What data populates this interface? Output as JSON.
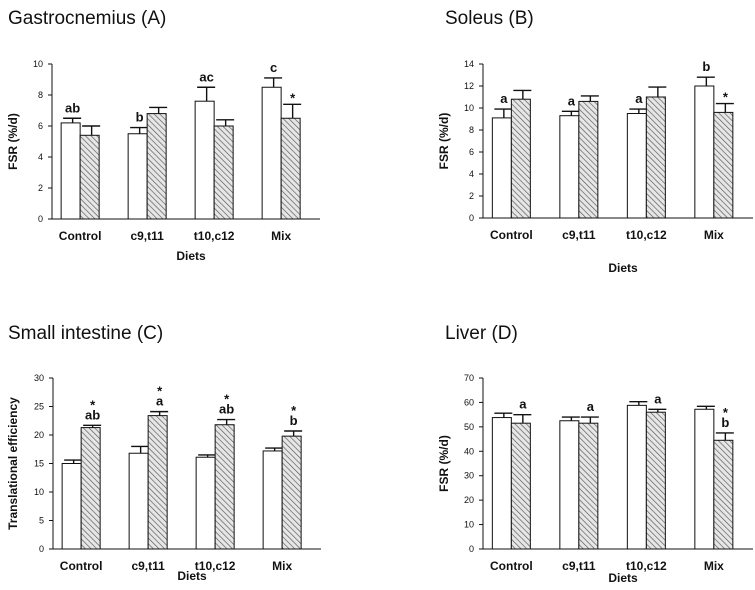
{
  "chart_data": [
    {
      "type": "bar",
      "title": "Gastrocnemius (A)",
      "xlabel": "Diets",
      "ylabel": "FSR (%/d)",
      "ylim": [
        0,
        10
      ],
      "yticks": [
        0,
        2,
        4,
        6,
        8,
        10
      ],
      "categories": [
        "Control",
        "c9,t11",
        "t10,c12",
        "Mix"
      ],
      "series": [
        {
          "values": [
            6.2,
            5.5,
            7.6,
            8.5
          ],
          "errors": [
            0.3,
            0.4,
            0.9,
            0.6
          ],
          "pattern": "open"
        },
        {
          "values": [
            5.4,
            6.8,
            6.0,
            6.5
          ],
          "errors": [
            0.6,
            0.4,
            0.4,
            0.9
          ],
          "pattern": "hatched"
        }
      ],
      "group_labels": [
        "ab",
        "b",
        "ac",
        "c"
      ],
      "annotations": [
        {
          "category": 0,
          "series": 0,
          "text": "ab"
        },
        {
          "category": 1,
          "series": 0,
          "text": "b"
        },
        {
          "category": 2,
          "series": 0,
          "text": "ac"
        },
        {
          "category": 3,
          "series": 0,
          "text": "c"
        },
        {
          "category": 3,
          "series": 1,
          "text": "*"
        }
      ]
    },
    {
      "type": "bar",
      "title": "Soleus (B)",
      "xlabel": "Diets",
      "ylabel": "FSR (%/d)",
      "ylim": [
        0,
        14
      ],
      "yticks": [
        0,
        2,
        4,
        6,
        8,
        10,
        12,
        14
      ],
      "categories": [
        "Control",
        "c9,t11",
        "t10,c12",
        "Mix"
      ],
      "series": [
        {
          "values": [
            9.1,
            9.3,
            9.5,
            12.0
          ],
          "errors": [
            0.8,
            0.4,
            0.4,
            0.8
          ],
          "pattern": "open"
        },
        {
          "values": [
            10.8,
            10.6,
            11.0,
            9.6
          ],
          "errors": [
            0.8,
            0.5,
            0.9,
            0.8
          ],
          "pattern": "hatched"
        }
      ],
      "group_labels": [
        "a",
        "a",
        "a",
        "b"
      ],
      "annotations": [
        {
          "category": 0,
          "series": 0,
          "text": "a"
        },
        {
          "category": 1,
          "series": 0,
          "text": "a"
        },
        {
          "category": 2,
          "series": 0,
          "text": "a"
        },
        {
          "category": 3,
          "series": 0,
          "text": "b"
        },
        {
          "category": 3,
          "series": 1,
          "text": "*"
        }
      ]
    },
    {
      "type": "bar",
      "title": "Small intestine (C)",
      "xlabel": "Diets",
      "ylabel": "Translational efficiency",
      "ylim": [
        0,
        30
      ],
      "yticks": [
        0,
        5,
        10,
        15,
        20,
        25,
        30
      ],
      "categories": [
        "Control",
        "c9,t11",
        "t10,c12",
        "Mix"
      ],
      "series": [
        {
          "values": [
            15.0,
            16.8,
            16.1,
            17.2
          ],
          "errors": [
            0.6,
            1.2,
            0.4,
            0.5
          ],
          "pattern": "open"
        },
        {
          "values": [
            21.3,
            23.4,
            21.8,
            19.8
          ],
          "errors": [
            0.4,
            0.7,
            0.9,
            0.9
          ],
          "pattern": "hatched"
        }
      ],
      "group_labels": [
        "ab",
        "a",
        "ab",
        "b"
      ],
      "annotations": [
        {
          "category": 0,
          "series": 1,
          "text": "*"
        },
        {
          "category": 0,
          "series": 1,
          "text": "ab"
        },
        {
          "category": 1,
          "series": 1,
          "text": "*"
        },
        {
          "category": 1,
          "series": 1,
          "text": "a"
        },
        {
          "category": 2,
          "series": 1,
          "text": "*"
        },
        {
          "category": 2,
          "series": 1,
          "text": "ab"
        },
        {
          "category": 3,
          "series": 1,
          "text": "*"
        },
        {
          "category": 3,
          "series": 1,
          "text": "b"
        }
      ]
    },
    {
      "type": "bar",
      "title": "Liver (D)",
      "xlabel": "Diets",
      "ylabel": "FSR (%/d)",
      "ylim": [
        0,
        70
      ],
      "yticks": [
        0,
        10,
        20,
        30,
        40,
        50,
        60,
        70
      ],
      "categories": [
        "Control",
        "c9,t11",
        "t10,c12",
        "Mix"
      ],
      "series": [
        {
          "values": [
            53.8,
            52.5,
            58.8,
            57.2
          ],
          "errors": [
            1.8,
            1.5,
            1.5,
            1.2
          ],
          "pattern": "open"
        },
        {
          "values": [
            51.5,
            51.5,
            56.0,
            44.5
          ],
          "errors": [
            3.5,
            2.5,
            1.2,
            3.0
          ],
          "pattern": "hatched"
        }
      ],
      "group_labels": [
        "a",
        "a",
        "a",
        "b"
      ],
      "annotations": [
        {
          "category": 0,
          "series": 1,
          "text": "a"
        },
        {
          "category": 1,
          "series": 1,
          "text": "a"
        },
        {
          "category": 2,
          "series": 1,
          "text": "a"
        },
        {
          "category": 3,
          "series": 1,
          "text": "*"
        },
        {
          "category": 3,
          "series": 1,
          "text": "b"
        }
      ]
    }
  ],
  "colors": {
    "axis": "#111111",
    "bar_fill_open": "#ffffff",
    "hatch_line": "#555555",
    "hatch_bg": "#e6e6e6"
  }
}
